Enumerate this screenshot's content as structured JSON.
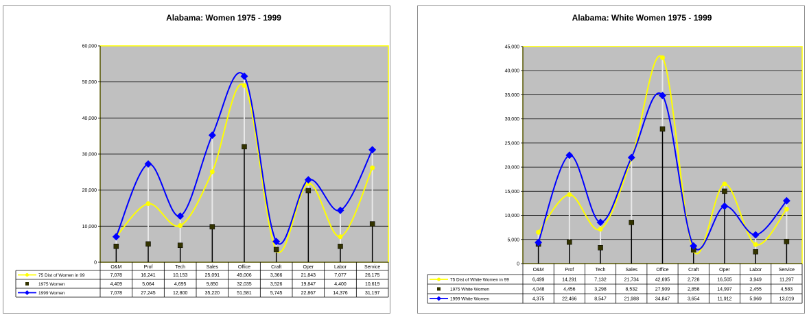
{
  "chart_data": [
    {
      "type": "line",
      "title": "Alabama: Women 1975 - 1999",
      "xlabel": "",
      "ylabel": "",
      "categories": [
        "O&M",
        "Prof",
        "Tech",
        "Sales",
        "Office",
        "Craft",
        "Oper",
        "Labor",
        "Service"
      ],
      "ylim": [
        0,
        60000
      ],
      "yticks": [
        "0",
        "10,000",
        "20,000",
        "30,000",
        "40,000",
        "50,000",
        "60,000"
      ],
      "grid": true,
      "legend": "table-bottom",
      "series": [
        {
          "name": "75 Dist of Women in 99",
          "color": "#ffff00",
          "marker": "circle",
          "values": [
            7078,
            16241,
            10153,
            25091,
            49006,
            3366,
            21843,
            7077,
            26175
          ],
          "labels": [
            "7,078",
            "16,241",
            "10,153",
            "25,091",
            "49,006",
            "3,366",
            "21,843",
            "7,077",
            "26,175"
          ]
        },
        {
          "name": "1975 Women",
          "color": "#333300",
          "marker": "square",
          "values": [
            4409,
            5064,
            4695,
            9850,
            32035,
            3526,
            19847,
            4400,
            10619
          ],
          "labels": [
            "4,409",
            "5,064",
            "4,695",
            "9,850",
            "32,035",
            "3,526",
            "19,847",
            "4,400",
            "10,619"
          ]
        },
        {
          "name": "1999 Women",
          "color": "#0000ff",
          "marker": "diamond",
          "values": [
            7078,
            27245,
            12800,
            35220,
            51581,
            5745,
            22867,
            14376,
            31197
          ],
          "labels": [
            "7,078",
            "27,245",
            "12,800",
            "35,220",
            "51,581",
            "5,745",
            "22,867",
            "14,376",
            "31,197"
          ]
        }
      ]
    },
    {
      "type": "line",
      "title": "Alabama: White Women 1975 - 1999",
      "xlabel": "",
      "ylabel": "",
      "categories": [
        "O&M",
        "Prof",
        "Tech",
        "Sales",
        "Office",
        "Craft",
        "Oper",
        "Labor",
        "Service"
      ],
      "ylim": [
        0,
        45000
      ],
      "yticks": [
        "0",
        "5,000",
        "10,000",
        "15,000",
        "20,000",
        "25,000",
        "30,000",
        "35,000",
        "40,000",
        "45,000"
      ],
      "grid": true,
      "legend": "table-bottom",
      "series": [
        {
          "name": "75 Dist of White Women in 99",
          "color": "#ffff00",
          "marker": "circle",
          "values": [
            6499,
            14291,
            7132,
            21734,
            42695,
            2728,
            16505,
            3949,
            11297
          ],
          "labels": [
            "6,499",
            "14,291",
            "7,132",
            "21,734",
            "42,695",
            "2,728",
            "16,505",
            "3,949",
            "11,297"
          ]
        },
        {
          "name": "1975 White Women",
          "color": "#333300",
          "marker": "square",
          "values": [
            4048,
            4456,
            3298,
            8532,
            27909,
            2858,
            14997,
            2455,
            4583
          ],
          "labels": [
            "4,048",
            "4,456",
            "3,298",
            "8,532",
            "27,909",
            "2,858",
            "14,997",
            "2,455",
            "4,583"
          ]
        },
        {
          "name": "1999 White Women",
          "color": "#0000ff",
          "marker": "diamond",
          "values": [
            4375,
            22466,
            8547,
            21988,
            34847,
            3654,
            11912,
            5969,
            13019
          ],
          "labels": [
            "4,375",
            "22,466",
            "8,547",
            "21,988",
            "34,847",
            "3,654",
            "11,912",
            "5,969",
            "13,019"
          ]
        }
      ]
    }
  ]
}
